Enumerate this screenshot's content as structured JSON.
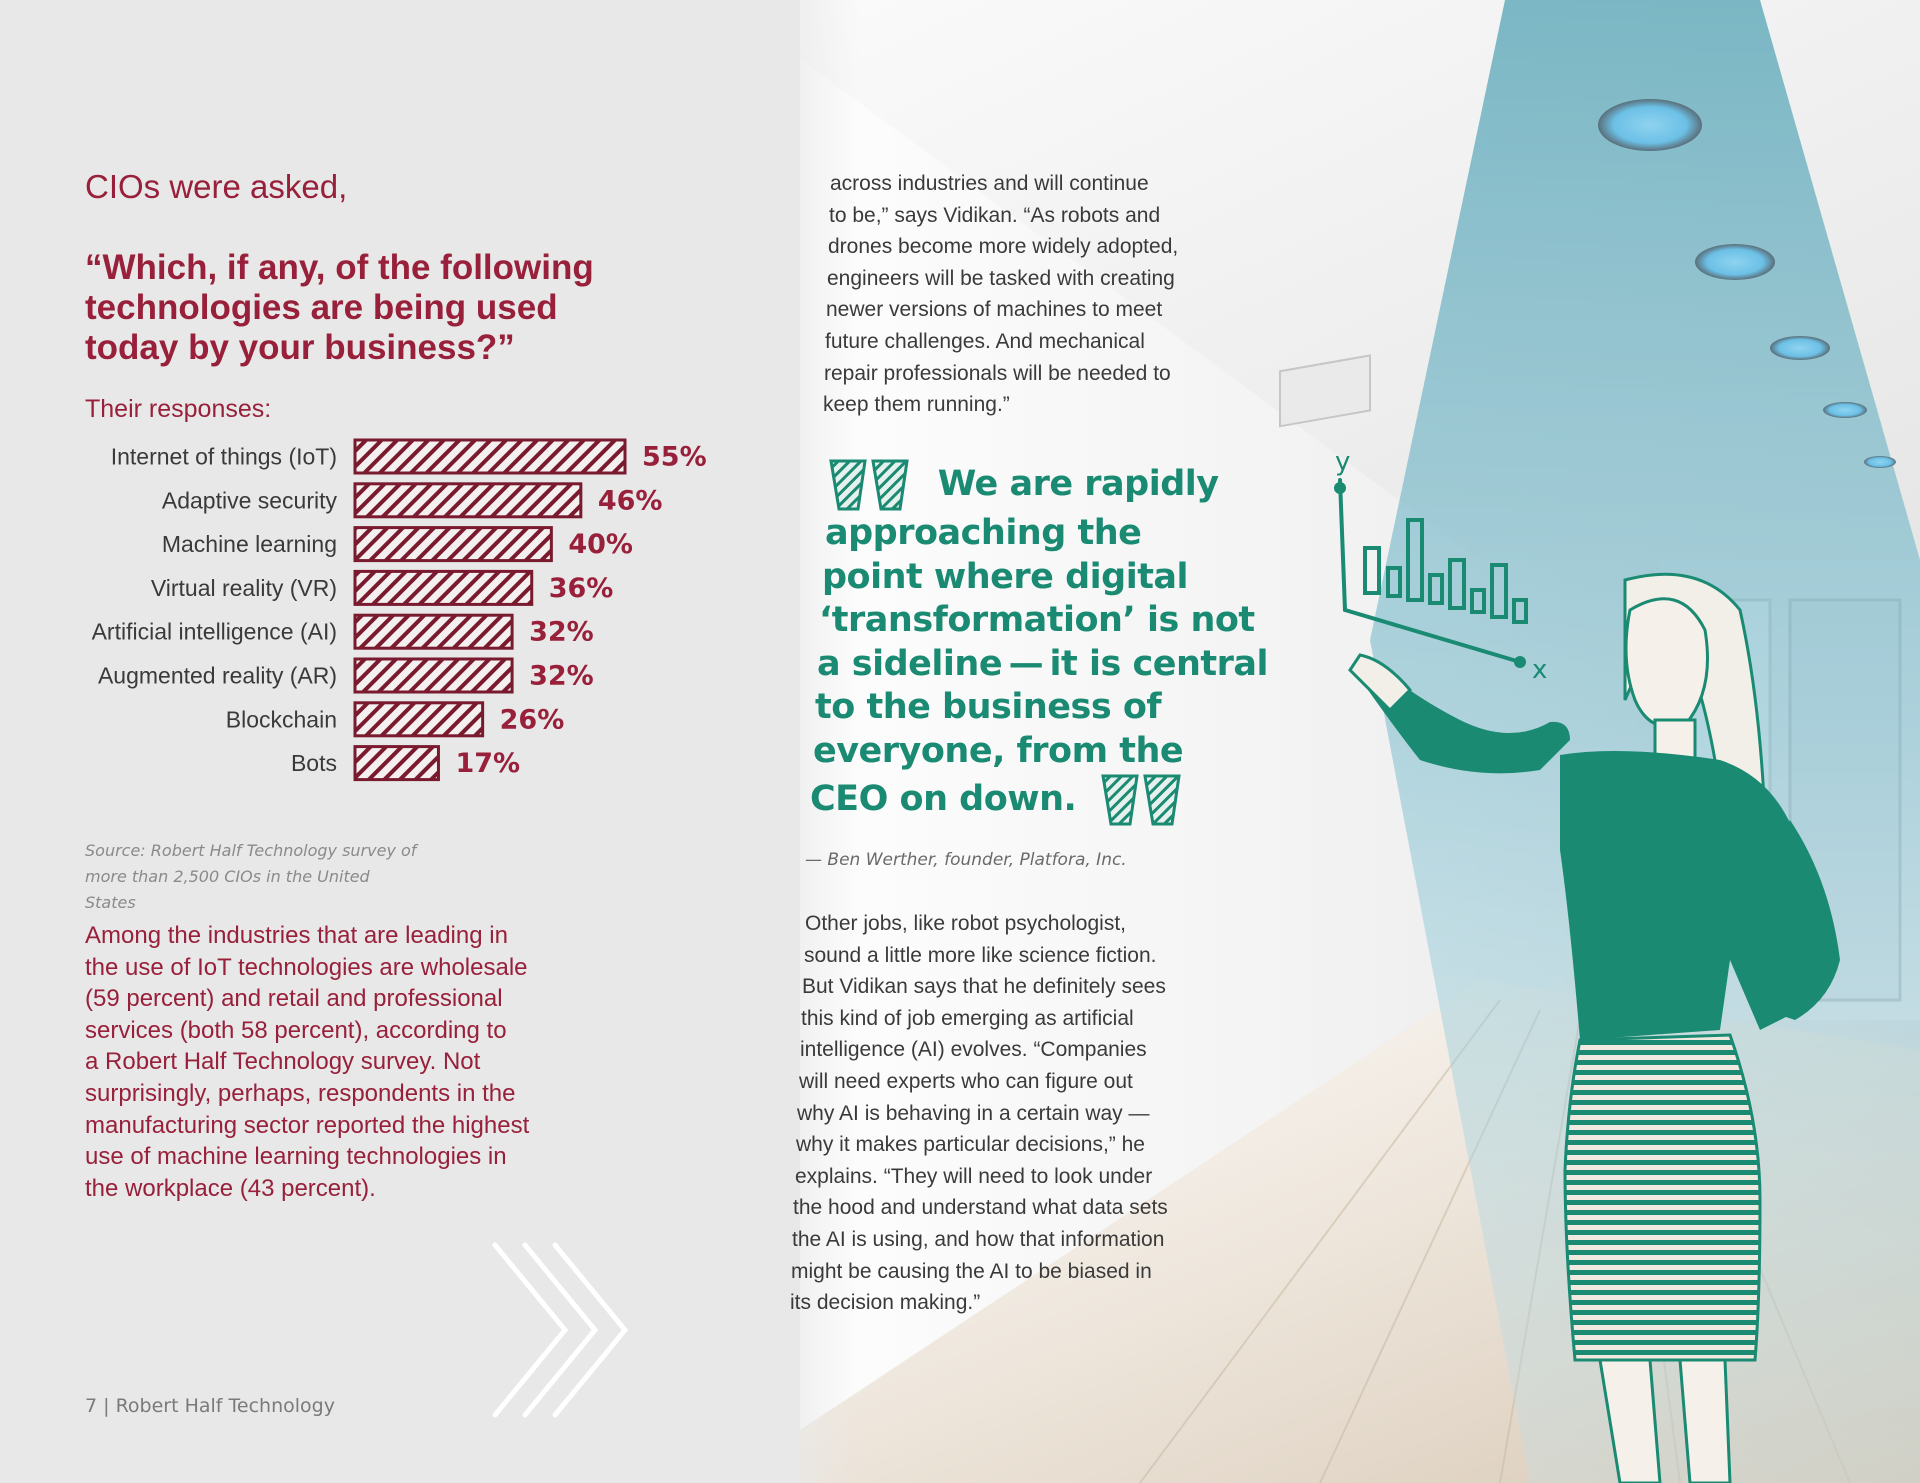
{
  "header": {
    "intro": "CIOs were asked,",
    "question": "“Which, if any, of the following technologies are being used today by your business?”",
    "responses_label": "Their responses:"
  },
  "chart_data": {
    "type": "bar",
    "orientation": "horizontal",
    "categories": [
      "Internet of things (IoT)",
      "Adaptive security",
      "Machine learning",
      "Virtual reality (VR)",
      "Artificial intelligence (AI)",
      "Augmented reality (AR)",
      "Blockchain",
      "Bots"
    ],
    "values": [
      55,
      46,
      40,
      36,
      32,
      32,
      26,
      17
    ],
    "value_labels": [
      "55%",
      "46%",
      "40%",
      "36%",
      "32%",
      "32%",
      "26%",
      "17%"
    ],
    "unit": "%",
    "xlim": [
      0,
      55
    ],
    "grid": false,
    "bar_fill": "hatched",
    "bar_color": "#7a1a2e",
    "label_color": "#98203a"
  },
  "source_lines": [
    "Source: Robert Half Technology survey of",
    "more than 2,500 CIOs in the United States"
  ],
  "left_body_lines": [
    "Among the industries that are leading in",
    "the use of IoT technologies are wholesale",
    "(59 percent) and retail and professional",
    "services (both 58 percent), according to",
    "a Robert Half Technology survey. Not",
    "surprisingly, perhaps, respondents in the",
    "manufacturing sector reported the highest",
    "use of machine learning technologies in",
    "the workplace (43 percent)."
  ],
  "footer": {
    "text": "7  |  Robert Half Technology"
  },
  "column1_lines": [
    "across industries and will continue",
    "to be,” says Vidikan. “As robots and",
    "drones become more widely adopted,",
    "engineers will be tasked with creating",
    "newer versions of machines to meet",
    "future challenges. And mechanical",
    "repair professionals will be needed to",
    "keep them running.”"
  ],
  "quote_lines": [
    "We are rapidly",
    "approaching the",
    "point where digital",
    "‘transformation’ is not",
    "a sideline — it is central",
    "to the business of",
    "everyone, from the",
    "CEO on down."
  ],
  "attribution": "— Ben Werther, founder, Platfora, Inc.",
  "column2_lines": [
    "Other jobs, like robot psychologist,",
    "sound a little more like science fiction.",
    "But Vidikan says that he definitely sees",
    "this kind of job emerging as artificial",
    "intelligence (AI) evolves. “Companies",
    "will need experts who can figure out",
    "why AI is behaving in a certain way —",
    "why it makes particular decisions,” he",
    "explains. “They will need to look under",
    "the hood and understand what data sets",
    "the AI is using, and how that information",
    "might be causing the AI to be biased in",
    "its decision making.”"
  ],
  "sketch_labels": {
    "y_axis": "y",
    "x_axis": "x"
  },
  "colors": {
    "crimson": "#98203a",
    "teal": "#1a8a72",
    "panel_gray": "#e8e8e8",
    "text_gray": "#3a3a3a",
    "light_blue": "#8fc7d6"
  },
  "icons": {
    "open_quote": "open-quote-icon",
    "close_quote": "close-quote-icon",
    "chevrons": "chevron-right-icon"
  }
}
